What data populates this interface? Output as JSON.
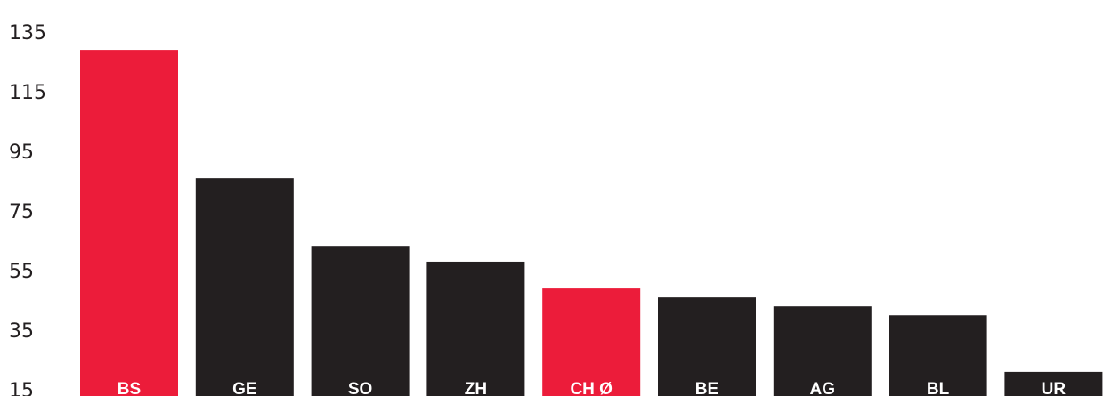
{
  "chart_data": {
    "type": "bar",
    "categories": [
      "BS",
      "GE",
      "SO",
      "ZH",
      "CH Ø",
      "BE",
      "AG",
      "BL",
      "UR"
    ],
    "values": [
      129,
      86,
      63,
      58,
      49,
      46,
      43,
      40,
      21
    ],
    "highlight": [
      true,
      false,
      false,
      false,
      true,
      false,
      false,
      false,
      false
    ],
    "ylim": [
      15,
      135
    ],
    "yticks": [
      15,
      35,
      55,
      75,
      95,
      115,
      135
    ],
    "grid": false,
    "colors": {
      "default": "#231f20",
      "highlight": "#ec1c3a",
      "label": "#ffffff",
      "tick": "#231f20"
    }
  }
}
